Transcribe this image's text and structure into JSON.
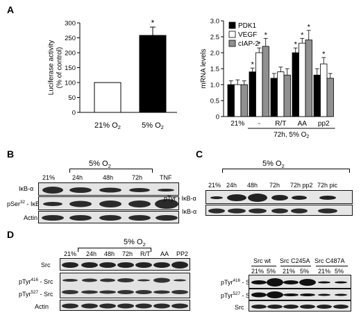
{
  "figure": {
    "panels": [
      "A",
      "B",
      "C",
      "D"
    ]
  },
  "chart_data": [
    {
      "type": "bar",
      "panel": "A",
      "ylabel": "Luciferase activity\n(% of control)",
      "ylim": [
        0,
        300
      ],
      "yticks": [
        "0",
        "50",
        "100",
        "150",
        "200",
        "250",
        "300"
      ],
      "categories": [
        "21% O2",
        "5% O2"
      ],
      "values": [
        100,
        258
      ],
      "errors": [
        0,
        28
      ],
      "colors": [
        "#ffffff",
        "#000000"
      ],
      "significance": [
        "",
        "*"
      ]
    },
    {
      "type": "bar",
      "panel": "A",
      "ylabel": "mRNA levels",
      "ylim": [
        0,
        3.0
      ],
      "yticks": [
        "0",
        "0.5",
        "1.0",
        "1.5",
        "2.0",
        "2.5",
        "3.0"
      ],
      "categories": [
        "21%",
        "-",
        "R/T",
        "AA",
        "pp2"
      ],
      "group_caption": "72h,  5% O2",
      "legend_position": "top-left",
      "series": [
        {
          "name": "PDK1",
          "color": "#000000",
          "values": [
            1.0,
            1.4,
            1.2,
            2.0,
            1.3
          ],
          "errors": [
            0.12,
            0.12,
            0.15,
            0.15,
            0.2
          ],
          "significance": [
            "",
            "*",
            "",
            "*",
            ""
          ]
        },
        {
          "name": "VEGF",
          "color": "#ffffff",
          "values": [
            1.0,
            2.0,
            1.4,
            2.3,
            1.65
          ],
          "errors": [
            0.15,
            0.15,
            0.15,
            0.15,
            0.2
          ],
          "significance": [
            "",
            "*",
            "",
            "*",
            "*"
          ]
        },
        {
          "name": "cIAP-2",
          "color": "#909090",
          "values": [
            1.0,
            2.2,
            1.3,
            2.4,
            1.2
          ],
          "errors": [
            0.12,
            0.25,
            0.2,
            0.3,
            0.15
          ],
          "significance": [
            "",
            "*",
            "",
            "*",
            ""
          ]
        }
      ]
    }
  ],
  "panelB": {
    "header": "5% O2",
    "lanes": [
      "21%",
      "24h",
      "48h",
      "72h",
      "TNF"
    ],
    "rows": [
      {
        "label": "IκB-α"
      },
      {
        "label": "pSer32 - IκB-α"
      },
      {
        "label": "Actin"
      }
    ]
  },
  "panelC": {
    "header": "5% O2",
    "lanes": [
      "21%",
      "24h",
      "48h",
      "72h",
      "72h pp2",
      "72h pic"
    ],
    "rows": [
      {
        "label": "pTyr - IκB-α"
      },
      {
        "label": "IκB-α"
      }
    ]
  },
  "panelD": {
    "header": "5% O2",
    "lanes": [
      "21%",
      "24h",
      "48h",
      "72h",
      "R/T",
      "AA",
      "PP2"
    ],
    "rows": [
      {
        "label": "Src"
      },
      {
        "label": "pTyr416 - Src"
      },
      {
        "label": "pTyr527 - Src"
      },
      {
        "label": "Actin"
      }
    ],
    "right": {
      "groups": [
        "Src wt",
        "Src C245A",
        "Src C487A"
      ],
      "lanes": [
        "21%",
        "5%",
        "21%",
        "5%",
        "21%",
        "5%"
      ],
      "rows": [
        {
          "label": "pTyr416 - Src"
        },
        {
          "label": "pTyr527 - Src"
        },
        {
          "label": "Src"
        }
      ]
    }
  }
}
